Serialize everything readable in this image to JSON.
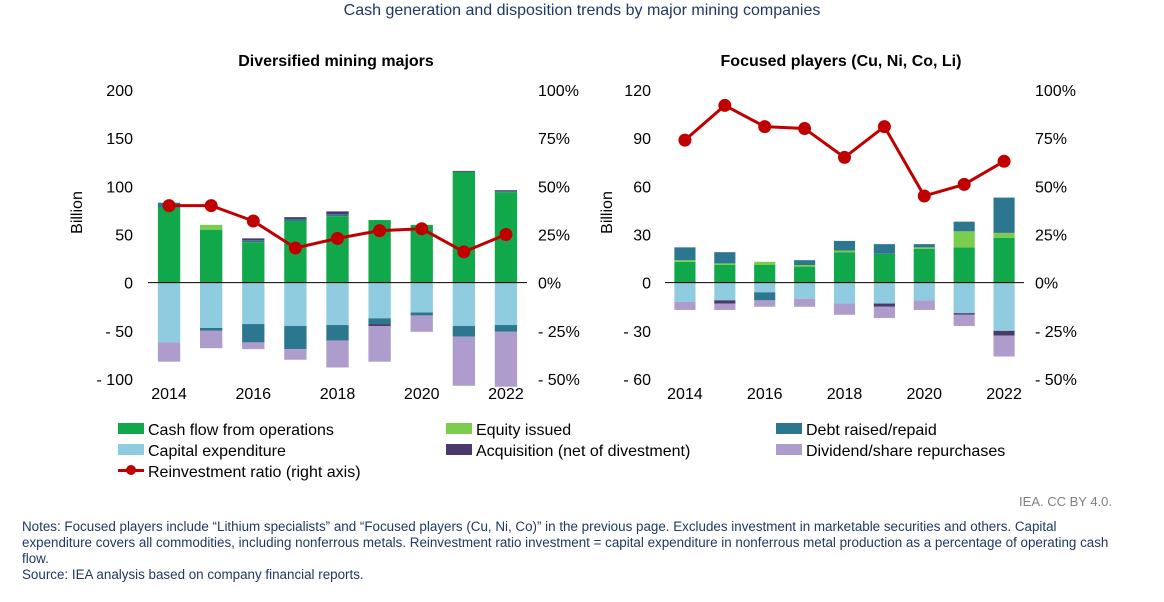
{
  "figure_title": "Cash generation and disposition trends by major mining companies",
  "chart_data": [
    {
      "type": "bar",
      "title": "Diversified mining majors",
      "ylabel": "Billion",
      "ylim": [
        -100,
        200
      ],
      "y2lim": [
        -50,
        100
      ],
      "yticks": [
        "200",
        "150",
        "100",
        "50",
        "0",
        "- 50",
        "- 100"
      ],
      "y2ticks": [
        "100%",
        "75%",
        "50%",
        "25%",
        "0%",
        "- 25%",
        "- 50%"
      ],
      "x": [
        2014,
        2015,
        2016,
        2017,
        2018,
        2019,
        2020,
        2021,
        2022
      ],
      "xticks": [
        "2014",
        "2016",
        "2018",
        "2020",
        "2022"
      ],
      "series": [
        {
          "name": "Cash flow from operations",
          "values": [
            78,
            55,
            42,
            64,
            69,
            65,
            60,
            115,
            94
          ]
        },
        {
          "name": "Equity issued",
          "values": [
            0,
            5,
            0,
            0,
            0,
            0,
            0,
            0,
            0
          ]
        },
        {
          "name": "Debt raised/repaid",
          "values": [
            5,
            0,
            2,
            2,
            2,
            0,
            0,
            0,
            1
          ]
        },
        {
          "name": "Acquisition (net of divestment)",
          "values": [
            0,
            0,
            2,
            2,
            3,
            0,
            0,
            1,
            1
          ]
        },
        {
          "name": "Capital expenditure",
          "values": [
            -62,
            -47,
            -43,
            -45,
            -44,
            -37,
            -31,
            -45,
            -44
          ]
        },
        {
          "name": "Debt raised/repaid",
          "values": [
            0,
            -3,
            -19,
            -24,
            -16,
            -6,
            -3,
            -11,
            -7
          ]
        },
        {
          "name": "Acquisition (net of divestment)",
          "values": [
            0,
            0,
            0,
            0,
            0,
            -2,
            0,
            0,
            0
          ]
        },
        {
          "name": "Dividend/share repurchases",
          "values": [
            -20,
            -18,
            -7,
            -11,
            -28,
            -37,
            -17,
            -51,
            -57
          ]
        },
        {
          "name": "Reinvestment ratio (right axis)",
          "axis": "right",
          "values": [
            40,
            40,
            32,
            18,
            23,
            27,
            28,
            16,
            25
          ]
        }
      ]
    },
    {
      "type": "bar",
      "title": "Focused players (Cu, Ni, Co, Li)",
      "ylabel": "Billion",
      "ylim": [
        -60,
        120
      ],
      "y2lim": [
        -50,
        100
      ],
      "yticks": [
        "120",
        "90",
        "60",
        "30",
        "0",
        "- 30",
        "- 60"
      ],
      "y2ticks": [
        "100%",
        "75%",
        "50%",
        "25%",
        "0%",
        "- 25%",
        "- 50%"
      ],
      "x": [
        2014,
        2015,
        2016,
        2017,
        2018,
        2019,
        2020,
        2021,
        2022
      ],
      "xticks": [
        "2014",
        "2016",
        "2018",
        "2020",
        "2022"
      ],
      "series": [
        {
          "name": "Cash flow from operations",
          "values": [
            13,
            11,
            11,
            10,
            19,
            18,
            21,
            22,
            28
          ]
        },
        {
          "name": "Equity issued",
          "values": [
            1,
            1,
            2,
            1,
            1,
            0,
            1,
            10,
            3
          ]
        },
        {
          "name": "Debt raised/repaid",
          "values": [
            8,
            7,
            0,
            3,
            6,
            6,
            2,
            6,
            22
          ]
        },
        {
          "name": "Acquisition (net of divestment)",
          "values": [
            0,
            0,
            0,
            0,
            0,
            0,
            0,
            0,
            0
          ]
        },
        {
          "name": "Capital expenditure",
          "values": [
            -12,
            -11,
            -6,
            -10,
            -13,
            -13,
            -11,
            -19,
            -30
          ]
        },
        {
          "name": "Debt raised/repaid",
          "values": [
            0,
            0,
            -5,
            0,
            0,
            0,
            0,
            0,
            0
          ]
        },
        {
          "name": "Acquisition (net of divestment)",
          "values": [
            0,
            -2,
            0,
            0,
            0,
            -2,
            0,
            -1,
            -3
          ]
        },
        {
          "name": "Dividend/share repurchases",
          "values": [
            -5,
            -4,
            -4,
            -5,
            -7,
            -7,
            -6,
            -7,
            -13
          ]
        },
        {
          "name": "Reinvestment ratio (right axis)",
          "axis": "right",
          "values": [
            74,
            92,
            81,
            80,
            65,
            81,
            45,
            51,
            63
          ]
        }
      ]
    }
  ],
  "legend": [
    {
      "label": "Cash flow from operations",
      "color": "#10a84a",
      "kind": "box"
    },
    {
      "label": "Equity issued",
      "color": "#7ccd4d",
      "kind": "box"
    },
    {
      "label": "Debt raised/repaid",
      "color": "#2d7690",
      "kind": "box"
    },
    {
      "label": "Capital expenditure",
      "color": "#8fcce0",
      "kind": "box"
    },
    {
      "label": "Acquisition (net of divestment)",
      "color": "#4a3a6b",
      "kind": "box"
    },
    {
      "label": "Dividend/share repurchases",
      "color": "#ad9ccc",
      "kind": "box"
    },
    {
      "label": "Reinvestment ratio (right axis)",
      "color": "#c00000",
      "kind": "line"
    }
  ],
  "credit": "IEA. CC BY 4.0.",
  "notes": "Notes: Focused players include “Lithium specialists” and “Focused players (Cu, Ni, Co)” in the previous page. Excludes investment in marketable securities and others. Capital expenditure covers all commodities, including nonferrous metals. Reinvestment ratio investment = capital expenditure in nonferrous metal production as a percentage of operating cash flow.",
  "source": "Source: IEA analysis based on company financial reports.",
  "colors": {
    "cash_flow": "#10a84a",
    "equity": "#7ccd4d",
    "debt": "#2d7690",
    "capex": "#8fcce0",
    "acquisition": "#4a3a6b",
    "dividend": "#ad9ccc",
    "ratio": "#c00000"
  }
}
